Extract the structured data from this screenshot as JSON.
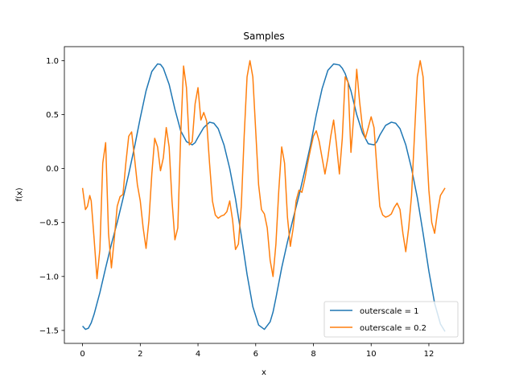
{
  "chart_data": {
    "type": "line",
    "title": "Samples",
    "xlabel": "x",
    "ylabel": "f(x)",
    "xlim": [
      -0.63,
      13.2
    ],
    "ylim": [
      -1.62,
      1.13
    ],
    "xticks": [
      0,
      2,
      4,
      6,
      8,
      10,
      12
    ],
    "xtick_labels": [
      "0",
      "2",
      "4",
      "6",
      "8",
      "10",
      "12"
    ],
    "yticks": [
      -1.5,
      -1.0,
      -0.5,
      0.0,
      0.5,
      1.0
    ],
    "ytick_labels": [
      "−1.5",
      "−1.0",
      "−0.5",
      "0.0",
      "0.5",
      "1.0"
    ],
    "grid": false,
    "legend_position": "lower-right",
    "series": [
      {
        "name": "outerscale = 1",
        "color": "#1f77b4",
        "x": [
          0.0,
          0.1,
          0.2,
          0.3,
          0.4,
          0.6,
          0.8,
          1.0,
          1.2,
          1.4,
          1.6,
          1.8,
          2.0,
          2.2,
          2.4,
          2.6,
          2.7,
          2.8,
          3.0,
          3.2,
          3.4,
          3.6,
          3.8,
          3.9,
          4.0,
          4.2,
          4.4,
          4.55,
          4.7,
          4.9,
          5.1,
          5.3,
          5.5,
          5.7,
          5.9,
          6.1,
          6.3,
          6.5,
          6.6,
          6.7,
          6.9,
          7.1,
          7.3,
          7.5,
          7.7,
          7.9,
          8.1,
          8.3,
          8.5,
          8.7,
          8.9,
          9.0,
          9.1,
          9.3,
          9.5,
          9.7,
          9.9,
          10.1,
          10.2,
          10.3,
          10.5,
          10.7,
          10.85,
          11.0,
          11.2,
          11.4,
          11.6,
          11.8,
          12.0,
          12.2,
          12.4,
          12.56
        ],
        "y": [
          -1.46,
          -1.49,
          -1.48,
          -1.43,
          -1.35,
          -1.15,
          -0.92,
          -0.7,
          -0.5,
          -0.28,
          -0.05,
          0.2,
          0.47,
          0.72,
          0.9,
          0.97,
          0.965,
          0.93,
          0.78,
          0.55,
          0.35,
          0.25,
          0.22,
          0.24,
          0.29,
          0.38,
          0.43,
          0.42,
          0.37,
          0.22,
          0.0,
          -0.28,
          -0.62,
          -0.98,
          -1.28,
          -1.45,
          -1.49,
          -1.42,
          -1.33,
          -1.2,
          -0.92,
          -0.68,
          -0.46,
          -0.25,
          -0.02,
          0.22,
          0.5,
          0.74,
          0.91,
          0.97,
          0.96,
          0.93,
          0.88,
          0.72,
          0.5,
          0.33,
          0.23,
          0.22,
          0.25,
          0.31,
          0.4,
          0.43,
          0.42,
          0.37,
          0.22,
          0.0,
          -0.27,
          -0.6,
          -0.95,
          -1.25,
          -1.44,
          -1.51
        ]
      },
      {
        "name": "outerscale = 0.2",
        "color": "#ff7f0e",
        "x": [
          0.0,
          0.1,
          0.17,
          0.25,
          0.3,
          0.4,
          0.5,
          0.6,
          0.7,
          0.8,
          0.9,
          1.0,
          1.1,
          1.2,
          1.3,
          1.4,
          1.5,
          1.6,
          1.7,
          1.8,
          1.9,
          2.0,
          2.1,
          2.2,
          2.3,
          2.4,
          2.5,
          2.6,
          2.7,
          2.8,
          2.9,
          3.0,
          3.1,
          3.2,
          3.3,
          3.4,
          3.5,
          3.6,
          3.7,
          3.8,
          3.9,
          4.0,
          4.1,
          4.2,
          4.3,
          4.4,
          4.5,
          4.6,
          4.7,
          4.8,
          4.9,
          5.0,
          5.1,
          5.2,
          5.3,
          5.4,
          5.5,
          5.6,
          5.7,
          5.8,
          5.9,
          6.0,
          6.1,
          6.2,
          6.3,
          6.4,
          6.5,
          6.6,
          6.7,
          6.8,
          6.9,
          7.0,
          7.1,
          7.2,
          7.3,
          7.4,
          7.5,
          7.6,
          7.7,
          7.8,
          7.9,
          8.0,
          8.1,
          8.2,
          8.3,
          8.4,
          8.5,
          8.6,
          8.7,
          8.8,
          8.9,
          9.0,
          9.1,
          9.2,
          9.3,
          9.4,
          9.5,
          9.6,
          9.7,
          9.8,
          9.9,
          10.0,
          10.1,
          10.2,
          10.3,
          10.4,
          10.5,
          10.6,
          10.7,
          10.8,
          10.9,
          11.0,
          11.1,
          11.2,
          11.3,
          11.4,
          11.5,
          11.6,
          11.7,
          11.8,
          11.9,
          12.0,
          12.1,
          12.2,
          12.3,
          12.4,
          12.56
        ],
        "y": [
          -0.18,
          -0.38,
          -0.35,
          -0.25,
          -0.3,
          -0.65,
          -1.02,
          -0.75,
          0.05,
          0.24,
          -0.6,
          -0.92,
          -0.65,
          -0.35,
          -0.26,
          -0.24,
          0.05,
          0.3,
          0.34,
          0.1,
          -0.15,
          -0.3,
          -0.55,
          -0.74,
          -0.48,
          -0.05,
          0.28,
          0.2,
          -0.02,
          0.1,
          0.38,
          0.2,
          -0.3,
          -0.66,
          -0.55,
          0.3,
          0.95,
          0.75,
          0.22,
          0.25,
          0.6,
          0.75,
          0.45,
          0.52,
          0.44,
          0.05,
          -0.3,
          -0.43,
          -0.46,
          -0.44,
          -0.43,
          -0.4,
          -0.3,
          -0.48,
          -0.75,
          -0.7,
          -0.35,
          0.3,
          0.85,
          1.0,
          0.85,
          0.35,
          -0.15,
          -0.38,
          -0.42,
          -0.55,
          -0.85,
          -1.0,
          -0.7,
          -0.2,
          0.2,
          0.05,
          -0.45,
          -0.72,
          -0.55,
          -0.3,
          -0.2,
          -0.22,
          -0.1,
          0.05,
          0.18,
          0.3,
          0.35,
          0.25,
          0.1,
          -0.05,
          0.1,
          0.3,
          0.45,
          0.22,
          -0.05,
          0.28,
          0.85,
          0.8,
          0.15,
          0.5,
          0.92,
          0.62,
          0.38,
          0.28,
          0.38,
          0.48,
          0.38,
          0.0,
          -0.35,
          -0.43,
          -0.45,
          -0.44,
          -0.42,
          -0.36,
          -0.32,
          -0.38,
          -0.6,
          -0.77,
          -0.55,
          -0.25,
          0.3,
          0.85,
          1.0,
          0.85,
          0.3,
          -0.2,
          -0.5,
          -0.6,
          -0.4,
          -0.25,
          -0.18
        ]
      }
    ]
  }
}
